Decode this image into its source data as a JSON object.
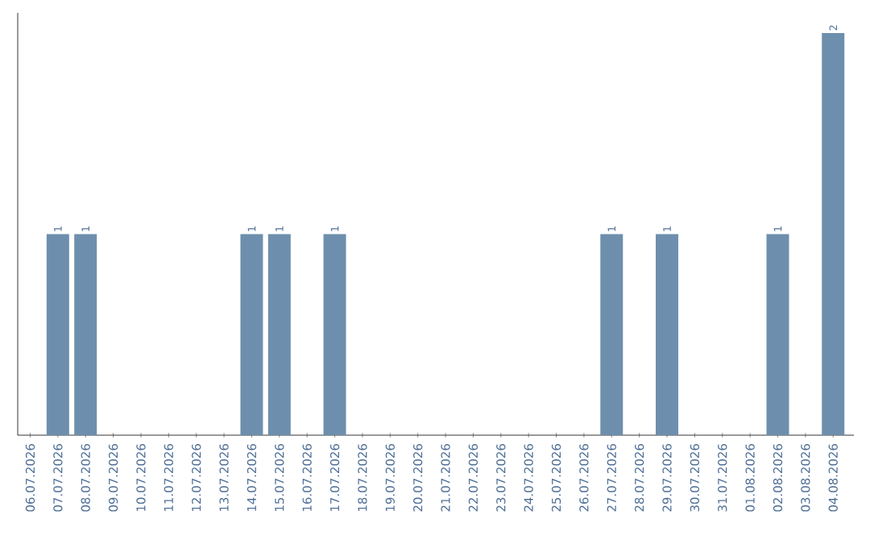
{
  "chart_data": {
    "type": "bar",
    "categories": [
      "06.07.2026",
      "07.07.2026",
      "08.07.2026",
      "09.07.2026",
      "10.07.2026",
      "11.07.2026",
      "12.07.2026",
      "13.07.2026",
      "14.07.2026",
      "15.07.2026",
      "16.07.2026",
      "17.07.2026",
      "18.07.2026",
      "19.07.2026",
      "20.07.2026",
      "21.07.2026",
      "22.07.2026",
      "23.07.2026",
      "24.07.2026",
      "25.07.2026",
      "26.07.2026",
      "27.07.2026",
      "28.07.2026",
      "29.07.2026",
      "30.07.2026",
      "31.07.2026",
      "01.08.2026",
      "02.08.2026",
      "03.08.2026",
      "04.08.2026"
    ],
    "values": [
      0,
      1,
      1,
      0,
      0,
      0,
      0,
      0,
      1,
      1,
      0,
      1,
      0,
      0,
      0,
      0,
      0,
      0,
      0,
      0,
      0,
      1,
      0,
      1,
      0,
      0,
      0,
      1,
      0,
      2
    ],
    "value_labels": [
      null,
      "1",
      "1",
      null,
      null,
      null,
      null,
      null,
      "1",
      "1",
      null,
      "1",
      null,
      null,
      null,
      null,
      null,
      null,
      null,
      null,
      null,
      "1",
      null,
      "1",
      null,
      null,
      null,
      "1",
      null,
      "2"
    ],
    "color": "#6d8fad"
  }
}
